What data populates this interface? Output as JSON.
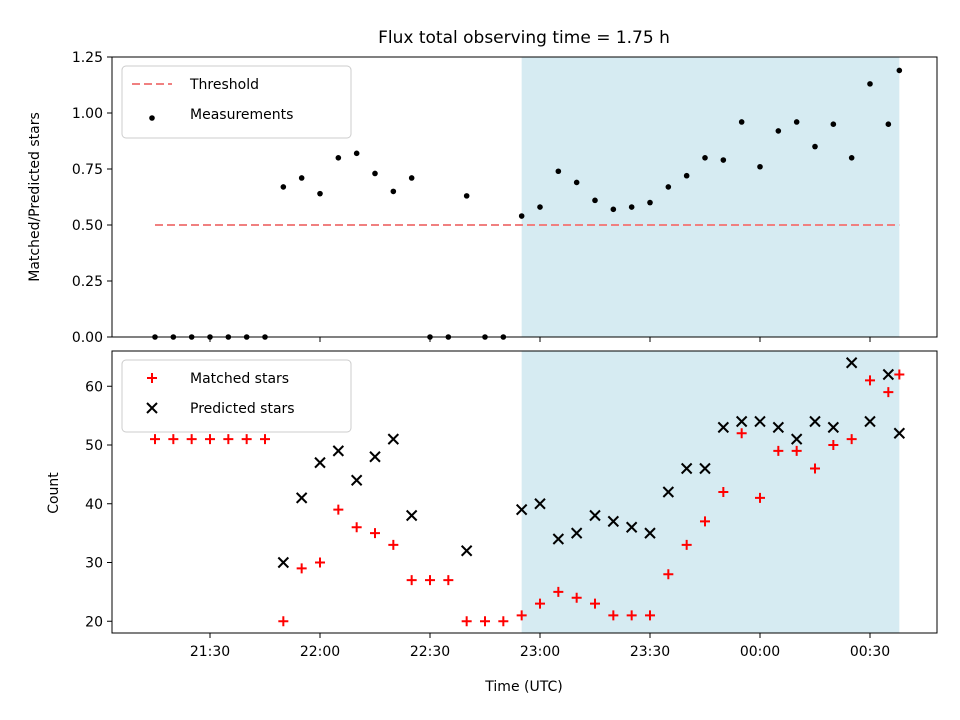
{
  "chart_data": [
    {
      "type": "scatter",
      "title": "Flux total observing time = 1.75 h",
      "xlabel": "",
      "ylabel": "Matched/Predicted stars",
      "ylim": [
        0,
        1.25
      ],
      "yticks": [
        "0.00",
        "0.25",
        "0.50",
        "0.75",
        "1.00",
        "1.25"
      ],
      "shaded_span": {
        "from": "22:55",
        "to": "00:38"
      },
      "legend_position": "upper-left",
      "threshold": {
        "name": "Threshold",
        "value": 0.5,
        "from": "21:15",
        "to": "00:38",
        "color": "#f08080"
      },
      "series": [
        {
          "name": "Measurements",
          "marker": "dot",
          "color": "#000000",
          "x": [
            "21:15",
            "21:20",
            "21:25",
            "21:30",
            "21:35",
            "21:40",
            "21:45",
            "21:50",
            "21:55",
            "22:00",
            "22:05",
            "22:10",
            "22:15",
            "22:20",
            "22:25",
            "22:30",
            "22:35",
            "22:40",
            "22:45",
            "22:50",
            "22:55",
            "23:00",
            "23:05",
            "23:10",
            "23:15",
            "23:20",
            "23:25",
            "23:30",
            "23:35",
            "23:40",
            "23:45",
            "23:50",
            "23:55",
            "00:00",
            "00:05",
            "00:10",
            "00:15",
            "00:20",
            "00:25",
            "00:30",
            "00:35",
            "00:38"
          ],
          "y": [
            0,
            0,
            0,
            0,
            0,
            0,
            0,
            0.67,
            0.71,
            0.64,
            0.8,
            0.82,
            0.73,
            0.65,
            0.71,
            0,
            0,
            0.63,
            0,
            0,
            0.54,
            0.58,
            0.74,
            0.69,
            0.61,
            0.57,
            0.58,
            0.6,
            0.67,
            0.72,
            0.8,
            0.79,
            0.96,
            0.76,
            0.92,
            0.96,
            0.85,
            0.95,
            0.8,
            1.13,
            0.95,
            1.19
          ]
        }
      ]
    },
    {
      "type": "scatter",
      "title": "",
      "xlabel": "Time (UTC)",
      "ylabel": "Count",
      "ylim": [
        18,
        66
      ],
      "yticks": [
        "20",
        "30",
        "40",
        "50",
        "60"
      ],
      "xticks": [
        "21:30",
        "22:00",
        "22:30",
        "23:00",
        "23:30",
        "00:00",
        "00:30"
      ],
      "shaded_span": {
        "from": "22:55",
        "to": "00:38"
      },
      "legend_position": "upper-left",
      "series": [
        {
          "name": "Matched stars",
          "marker": "plus",
          "color": "#ff0000",
          "x": [
            "21:15",
            "21:20",
            "21:25",
            "21:30",
            "21:35",
            "21:40",
            "21:45",
            "21:50",
            "21:55",
            "22:00",
            "22:05",
            "22:10",
            "22:15",
            "22:20",
            "22:25",
            "22:30",
            "22:35",
            "22:40",
            "22:45",
            "22:50",
            "22:55",
            "23:00",
            "23:05",
            "23:10",
            "23:15",
            "23:20",
            "23:25",
            "23:30",
            "23:35",
            "23:40",
            "23:45",
            "23:50",
            "23:55",
            "00:00",
            "00:05",
            "00:10",
            "00:15",
            "00:20",
            "00:25",
            "00:30",
            "00:35",
            "00:38"
          ],
          "y": [
            51,
            51,
            51,
            51,
            51,
            51,
            51,
            20,
            29,
            30,
            39,
            36,
            35,
            33,
            27,
            27,
            27,
            20,
            20,
            20,
            21,
            23,
            25,
            24,
            23,
            21,
            21,
            21,
            28,
            33,
            37,
            42,
            52,
            41,
            49,
            49,
            46,
            50,
            51,
            61,
            59,
            62
          ]
        },
        {
          "name": "Predicted stars",
          "marker": "x",
          "color": "#000000",
          "x": [
            "21:50",
            "21:55",
            "22:00",
            "22:05",
            "22:10",
            "22:15",
            "22:20",
            "22:25",
            "22:40",
            "22:55",
            "23:00",
            "23:05",
            "23:10",
            "23:15",
            "23:20",
            "23:25",
            "23:30",
            "23:35",
            "23:40",
            "23:45",
            "23:50",
            "23:55",
            "00:00",
            "00:05",
            "00:10",
            "00:15",
            "00:20",
            "00:25",
            "00:30",
            "00:35",
            "00:38"
          ],
          "y": [
            30,
            41,
            47,
            49,
            44,
            48,
            51,
            38,
            32,
            39,
            40,
            34,
            35,
            38,
            37,
            36,
            35,
            42,
            46,
            46,
            53,
            54,
            54,
            53,
            51,
            54,
            53,
            64,
            54,
            62,
            52
          ]
        }
      ]
    }
  ]
}
